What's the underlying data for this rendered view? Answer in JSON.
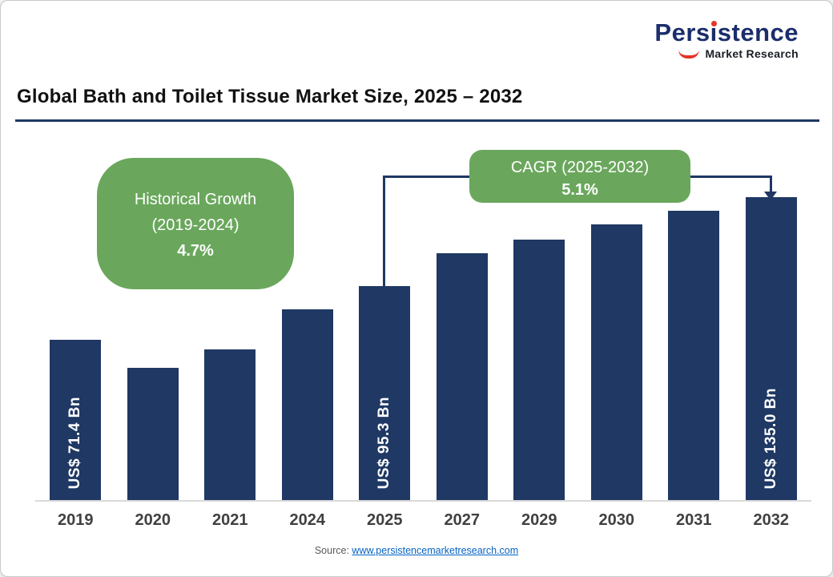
{
  "logo": {
    "brand_prefix": "Pers",
    "brand_i": "i",
    "brand_suffix": "stence",
    "brand_sub": "Market Research"
  },
  "header": {
    "title": "Global Bath and Toilet Tissue Market Size, 2025 – 2032"
  },
  "callouts": {
    "historical": {
      "line1": "Historical Growth",
      "line2": "(2019-2024)",
      "value": "4.7%"
    },
    "cagr": {
      "line1": "CAGR (2025-2032)",
      "value": "5.1%"
    }
  },
  "chart_data": {
    "type": "bar",
    "title": "Global Bath and Toilet Tissue Market Size, 2025 – 2032",
    "categories": [
      "2019",
      "2020",
      "2021",
      "2024",
      "2025",
      "2027",
      "2029",
      "2030",
      "2031",
      "2032"
    ],
    "values": [
      71.4,
      59.0,
      67.0,
      85.0,
      95.3,
      110.0,
      116.0,
      123.0,
      129.0,
      135.0
    ],
    "bar_labels": [
      "US$ 71.4 Bn",
      "",
      "",
      "",
      "US$ 95.3 Bn",
      "",
      "",
      "",
      "",
      "US$ 135.0 Bn"
    ],
    "ylim": [
      0,
      145
    ],
    "ylabel": "US$ Bn",
    "xlabel": "",
    "bar_color": "#1f3864",
    "grid": false,
    "legend": false,
    "annotations": {
      "historical_growth_2019_2024": "4.7%",
      "cagr_2025_2032": "5.1%"
    }
  },
  "footer": {
    "source_label": "Source:",
    "source_link": "www.persistencemarketresearch.com"
  },
  "colors": {
    "bar": "#1f3864",
    "callout_green": "#6aa75c",
    "bracket_line": "#1f3864",
    "logo_navy": "#1b2e6b",
    "logo_red": "#e63329",
    "link_blue": "#0563c1"
  }
}
